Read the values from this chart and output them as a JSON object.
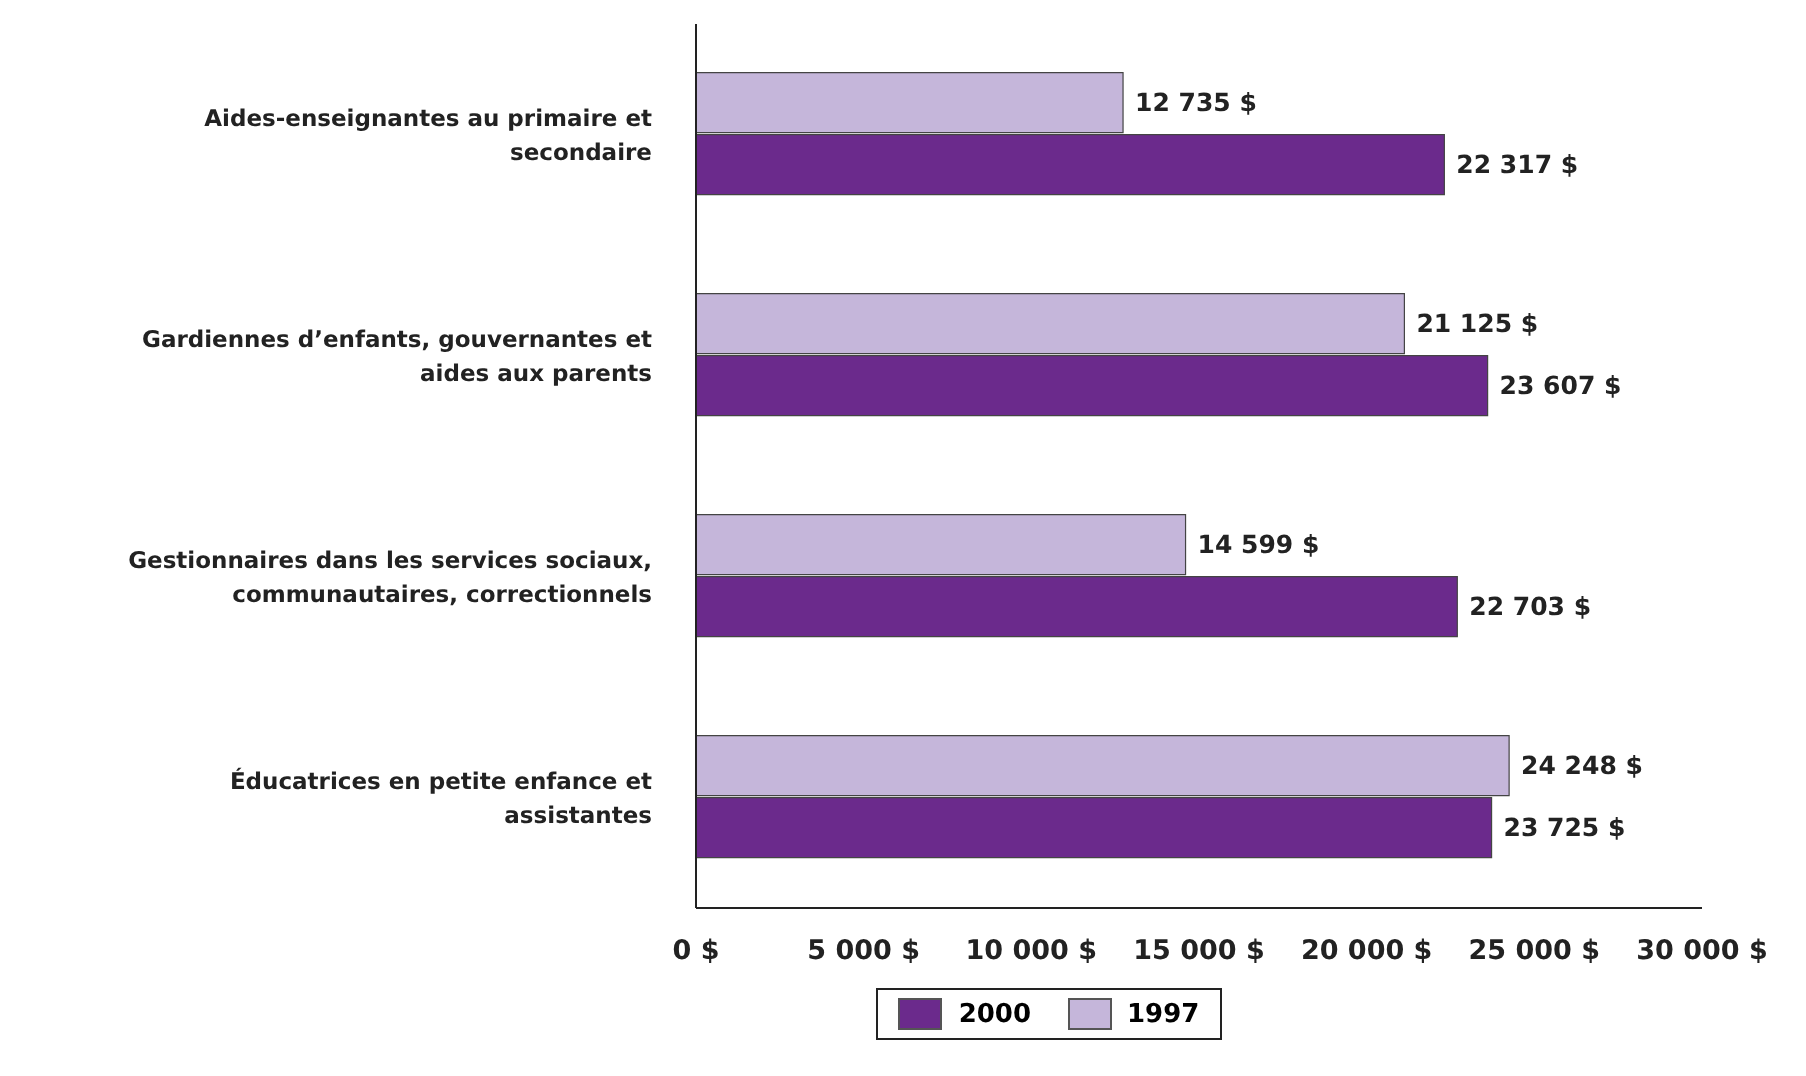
{
  "chart_data": {
    "type": "bar",
    "orientation": "horizontal",
    "categories": [
      "Aides-enseignantes au primaire et secondaire",
      "Gardiennes d’enfants, gouvernantes et aides aux parents",
      "Gestionnaires dans les services sociaux, communautaires, correctionnels",
      "Éducatrices en petite enfance et assistantes"
    ],
    "series": [
      {
        "name": "1997",
        "color": "#c5b6da",
        "values": [
          12735,
          21125,
          14599,
          24248
        ],
        "value_labels": [
          "12 735 $",
          "21 125 $",
          "14 599 $",
          "24 248 $"
        ]
      },
      {
        "name": "2000",
        "color": "#6b2a8c",
        "values": [
          22317,
          23607,
          22703,
          23725
        ],
        "value_labels": [
          "22 317 $",
          "23 607 $",
          "22 703 $",
          "23 725 $"
        ]
      }
    ],
    "xlim": [
      0,
      30000
    ],
    "xticks": [
      {
        "value": 0,
        "label": "0 $"
      },
      {
        "value": 5000,
        "label": "5 000 $"
      },
      {
        "value": 10000,
        "label": "10 000 $"
      },
      {
        "value": 15000,
        "label": "15 000 $"
      },
      {
        "value": 20000,
        "label": "20 000 $"
      },
      {
        "value": 25000,
        "label": "25 000 $"
      },
      {
        "value": 30000,
        "label": "30 000 $"
      }
    ],
    "legend": "bottom"
  }
}
